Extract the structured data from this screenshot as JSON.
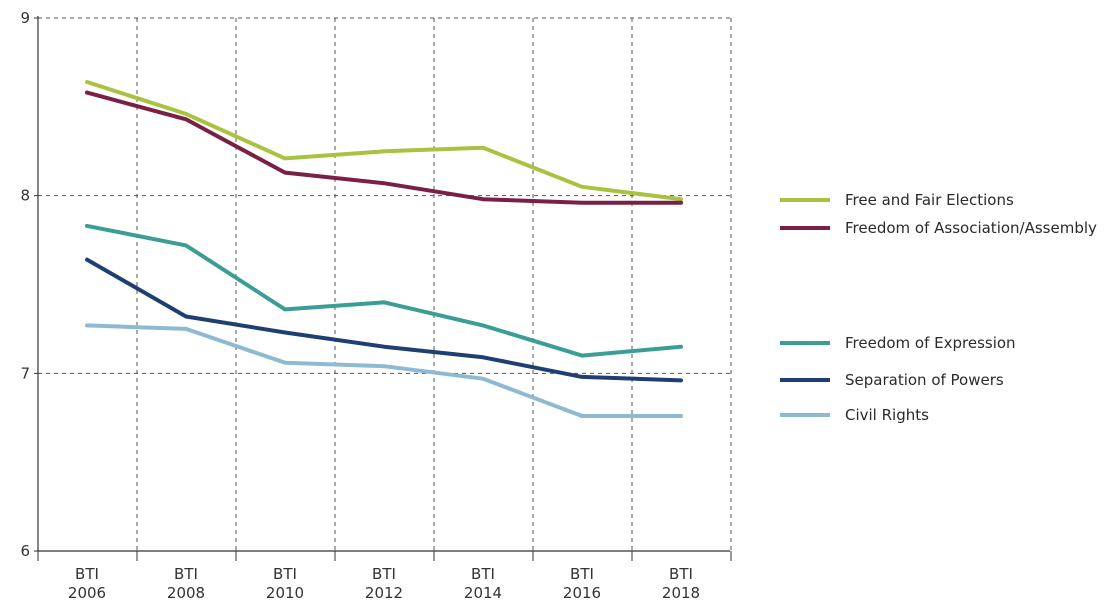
{
  "chart_data": {
    "type": "line",
    "title": "",
    "xlabel": "",
    "ylabel": "",
    "ylim": [
      6,
      9
    ],
    "yticks": [
      "6",
      "7",
      "8",
      "9"
    ],
    "categories": [
      [
        "BTI",
        "2006"
      ],
      [
        "BTI",
        "2008"
      ],
      [
        "BTI",
        "2010"
      ],
      [
        "BTI",
        "2012"
      ],
      [
        "BTI",
        "2014"
      ],
      [
        "BTI",
        "2016"
      ],
      [
        "BTI",
        "2018"
      ]
    ],
    "grid": true,
    "legend": "right",
    "series": [
      {
        "name": "Free and Fair Elections",
        "color": "#a9c23f",
        "values": [
          8.64,
          8.46,
          8.21,
          8.25,
          8.27,
          8.05,
          7.98
        ]
      },
      {
        "name": "Freedom of Association/Assembly",
        "color": "#7a1f45",
        "values": [
          8.58,
          8.43,
          8.13,
          8.07,
          7.98,
          7.96,
          7.96
        ]
      },
      {
        "name": "Freedom of Expression",
        "color": "#3a9e95",
        "values": [
          7.83,
          7.72,
          7.36,
          7.4,
          7.27,
          7.1,
          7.15
        ]
      },
      {
        "name": "Separation of Powers",
        "color": "#1f3f73",
        "values": [
          7.64,
          7.32,
          7.23,
          7.15,
          7.09,
          6.98,
          6.96
        ]
      },
      {
        "name": "Civil Rights",
        "color": "#8fb8d3",
        "values": [
          7.27,
          7.25,
          7.06,
          7.04,
          6.97,
          6.76,
          6.76
        ]
      }
    ]
  }
}
